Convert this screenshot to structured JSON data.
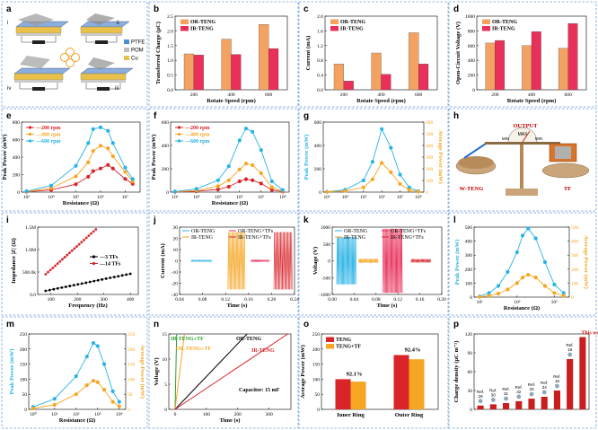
{
  "panel_letters": [
    "a",
    "b",
    "c",
    "d",
    "e",
    "f",
    "g",
    "h",
    "i",
    "j",
    "k",
    "l",
    "m",
    "n",
    "o",
    "p"
  ],
  "colors": {
    "or": "#f4a262",
    "ir": "#e8305a",
    "red": "#d9242a",
    "orange": "#f5a623",
    "cyan": "#27b3e6",
    "black": "#000000",
    "green": "#2e9e2e",
    "dashed": "#6a9bd6"
  },
  "a": {
    "legend": [
      "PTFE",
      "POM",
      "Cu"
    ],
    "roman": [
      "i",
      "ii",
      "iii",
      "iv"
    ],
    "icons": [
      "plate-schematic-icon",
      "clover-arrow-icon"
    ]
  },
  "h": {
    "labels": [
      "OUTPUT",
      "MAX",
      "MIN",
      "W-TENG",
      "TF"
    ],
    "icons": [
      "balance-scale-illustration-icon"
    ]
  },
  "chart_data": [
    {
      "id": "b",
      "type": "bar",
      "categories": [
        "200",
        "400",
        "600"
      ],
      "series": [
        {
          "name": "OR-TENG",
          "values": [
            1.22,
            1.72,
            2.22
          ]
        },
        {
          "name": "IR-TENG",
          "values": [
            1.18,
            1.2,
            1.4
          ]
        }
      ],
      "xlabel": "Rotate Speed (rpm)",
      "ylabel": "Transferred Charge (μC)",
      "ylim": [
        0,
        2.5
      ],
      "yticks": [
        "0.0",
        "0.5",
        "1.0",
        "1.5",
        "2.0",
        "2.5"
      ]
    },
    {
      "id": "c",
      "type": "bar",
      "categories": [
        "200",
        "400",
        "600"
      ],
      "series": [
        {
          "name": "OR-TENG",
          "values": [
            0.7,
            1.0,
            1.55
          ]
        },
        {
          "name": "IR-TENG",
          "values": [
            0.24,
            0.42,
            0.7
          ]
        }
      ],
      "xlabel": "Rotate Speed (rpm)",
      "ylabel": "Current (mA)",
      "ylim": [
        0,
        2.0
      ],
      "yticks": [
        "0.0",
        "0.4",
        "0.8",
        "1.2",
        "1.6",
        "2.0"
      ]
    },
    {
      "id": "d",
      "type": "bar",
      "categories": [
        "200",
        "400",
        "600"
      ],
      "series": [
        {
          "name": "OR-TENG",
          "values": [
            635,
            600,
            565
          ]
        },
        {
          "name": "IR-TENG",
          "values": [
            670,
            790,
            900
          ]
        }
      ],
      "xlabel": "Rotate Speed (rpm)",
      "ylabel": "Open-Circuit Voltage (V)",
      "ylim": [
        0,
        1000
      ],
      "yticks": [
        "0",
        "200",
        "400",
        "600",
        "800",
        "1000"
      ]
    },
    {
      "id": "e",
      "type": "line",
      "x": [
        3,
        4,
        5,
        5.5,
        5.7,
        6,
        6.3,
        6.5,
        7,
        7.3
      ],
      "series": [
        {
          "name": "200 rpm",
          "values": [
            3,
            25,
            90,
            175,
            240,
            270,
            310,
            270,
            150,
            95
          ]
        },
        {
          "name": "400 rpm",
          "values": [
            5,
            45,
            180,
            340,
            470,
            530,
            500,
            410,
            230,
            120
          ]
        },
        {
          "name": "600 rpm",
          "values": [
            10,
            75,
            300,
            560,
            720,
            740,
            700,
            560,
            280,
            150
          ]
        }
      ],
      "xlabel": "Resistance (Ω)",
      "ylabel": "Peak Power (mW)",
      "xticks": [
        "10³",
        "10⁴",
        "10⁵",
        "10⁶",
        "10⁷"
      ],
      "xlim": [
        2.8,
        7.6
      ],
      "ylim": [
        0,
        800
      ],
      "yticks": [
        "0",
        "200",
        "400",
        "600",
        "800"
      ]
    },
    {
      "id": "f",
      "type": "line",
      "x": [
        3,
        4,
        5,
        5.5,
        6,
        6.3,
        6.6,
        7,
        7.5,
        8
      ],
      "series": [
        {
          "name": "200 rpm",
          "values": [
            2,
            8,
            25,
            50,
            100,
            120,
            110,
            80,
            20,
            5
          ]
        },
        {
          "name": "400 rpm",
          "values": [
            3,
            15,
            55,
            110,
            210,
            265,
            250,
            175,
            45,
            10
          ]
        },
        {
          "name": "600 rpm",
          "values": [
            5,
            30,
            110,
            240,
            480,
            590,
            560,
            390,
            100,
            20
          ]
        }
      ],
      "xlabel": "Resistance (Ω)",
      "ylabel": "Peak Power (mW)",
      "xticks": [
        "10³",
        "10⁴",
        "10⁵",
        "10⁶",
        "10⁷",
        "10⁸"
      ],
      "xlim": [
        2.8,
        8.3
      ],
      "ylim": [
        0,
        650
      ],
      "yticks": [
        "0",
        "200",
        "400",
        "600"
      ]
    },
    {
      "id": "g",
      "type": "line",
      "x": [
        3,
        4,
        5,
        5.5,
        6,
        6.5,
        7,
        7.5,
        8
      ],
      "series": [
        {
          "name": "Peak Power",
          "axis": "left",
          "values": [
            3,
            20,
            100,
            260,
            540,
            380,
            150,
            40,
            8
          ]
        },
        {
          "name": "Average Power",
          "axis": "right",
          "values": [
            2,
            10,
            40,
            110,
            250,
            170,
            70,
            18,
            4
          ]
        }
      ],
      "ylabel": "Peak Power (mW)",
      "y2label": "Average Power (mW)",
      "xticks": [
        "10³",
        "10⁴",
        "10⁵",
        "10⁶",
        "10⁷",
        "10⁸"
      ],
      "xlim": [
        2.8,
        8.3
      ],
      "ylim": [
        0,
        600
      ],
      "yticks": [
        "0",
        "200",
        "400",
        "600"
      ],
      "y2lim": [
        0,
        600
      ],
      "y2ticks": [
        "0",
        "100",
        "200",
        "300",
        "400",
        "500",
        "600"
      ]
    },
    {
      "id": "i",
      "type": "scatter",
      "series": [
        {
          "name": "3 TFs",
          "x": [
            80,
            400
          ],
          "values": [
            0.08,
            0.46
          ]
        },
        {
          "name": "14 TFs",
          "x": [
            80,
            270
          ],
          "values": [
            0.45,
            1.45
          ]
        }
      ],
      "xlabel": "Frequency (Hz)",
      "ylabel": "Impedance |Z| (Ω)",
      "xlim": [
        50,
        430
      ],
      "xticks": [
        "100",
        "200",
        "300",
        "400"
      ],
      "ylim": [
        0,
        1.5
      ],
      "yticks": [
        "0.0",
        "500.0k",
        "1.0M",
        "1.5M"
      ]
    },
    {
      "id": "j",
      "type": "line",
      "series_names": [
        "OR-TENG",
        "IR-TENG",
        "OR-TENG+TFs",
        "IR-TENG+TFs"
      ],
      "xlabel": "Time (s)",
      "ylabel": "Current (mA)",
      "xlim": [
        0.04,
        0.24
      ],
      "xticks": [
        "0.04",
        "0.08",
        "0.12",
        "0.16",
        "0.20",
        "0.24"
      ],
      "ylim": [
        -30,
        30
      ],
      "yticks": [
        "-30",
        "-20",
        "-10",
        "0",
        "10",
        "20",
        "30"
      ]
    },
    {
      "id": "k",
      "type": "line",
      "series_names": [
        "OR-TENG",
        "IR-TENG",
        "OR-TENG+TFs",
        "IR-TENG+TFs"
      ],
      "xlabel": "Time (s)",
      "ylabel": "Voltage (V)",
      "xlim": [
        0.0,
        0.2
      ],
      "xticks": [
        "0.00",
        "0.04",
        "0.08",
        "0.12",
        "0.16",
        "0.20"
      ],
      "ylim": [
        -1000,
        1000
      ],
      "yticks": [
        "-1000",
        "-500",
        "0",
        "500",
        "1000"
      ]
    },
    {
      "id": "l",
      "type": "line",
      "x": [
        1,
        1.5,
        2,
        2.5,
        3,
        3.3,
        3.6,
        4,
        4.5,
        5,
        5.5
      ],
      "series": [
        {
          "name": "Peak Power",
          "axis": "left",
          "values": [
            5,
            30,
            80,
            180,
            320,
            440,
            490,
            420,
            250,
            90,
            30
          ]
        },
        {
          "name": "Average Power",
          "axis": "right",
          "values": [
            2,
            10,
            25,
            55,
            100,
            140,
            160,
            140,
            80,
            30,
            10
          ]
        }
      ],
      "xlabel": "Resistance (Ω)",
      "ylabel": "Peak Power (mW)",
      "y2label": "Average Power (mW)",
      "xticks": [
        "10¹",
        "10³",
        "10⁵"
      ],
      "xlim": [
        0.7,
        5.8
      ],
      "ylim": [
        0,
        500
      ],
      "yticks": [
        "0",
        "100",
        "200",
        "300",
        "400",
        "500"
      ],
      "y2lim": [
        0,
        500
      ],
      "y2ticks": [
        "0",
        "100",
        "200",
        "300",
        "400",
        "500"
      ]
    },
    {
      "id": "m",
      "type": "line",
      "x": [
        0,
        1,
        2,
        2.5,
        2.8,
        3,
        3.3,
        3.7,
        4
      ],
      "series": [
        {
          "name": "Peak Power",
          "axis": "left",
          "values": [
            8,
            35,
            110,
            175,
            220,
            210,
            150,
            60,
            25
          ]
        },
        {
          "name": "Average Power",
          "axis": "right",
          "values": [
            3,
            15,
            50,
            80,
            95,
            90,
            65,
            25,
            10
          ]
        }
      ],
      "xlabel": "Resistance (Ω)",
      "ylabel": "Peak Power (mW)",
      "y2label": "Average Power (mW)",
      "xticks": [
        "10⁰",
        "10¹",
        "10²",
        "10³",
        "10⁴"
      ],
      "xlim": [
        -0.2,
        4.3
      ],
      "ylim": [
        0,
        250
      ],
      "yticks": [
        "0",
        "50",
        "100",
        "150",
        "200",
        "250"
      ],
      "y2lim": [
        0,
        250
      ],
      "y2ticks": [
        "0",
        "50",
        "100",
        "150",
        "200",
        "250"
      ]
    },
    {
      "id": "n",
      "type": "line",
      "series": [
        {
          "name": "IR-TENG+TF",
          "x": [
            0,
            5
          ],
          "values": [
            0,
            15
          ]
        },
        {
          "name": "OR-TENG+TF",
          "x": [
            0,
            30
          ],
          "values": [
            0,
            15
          ]
        },
        {
          "name": "OR-TENG",
          "x": [
            0,
            230
          ],
          "values": [
            0,
            15
          ]
        },
        {
          "name": "IR-TENG",
          "x": [
            0,
            360
          ],
          "values": [
            0,
            15
          ]
        }
      ],
      "annotation": "Capacitor: 15 mF",
      "xlabel": "Time (s)",
      "ylabel": "Voltage (V)",
      "xlim": [
        -20,
        370
      ],
      "xticks": [
        "0",
        "100",
        "200",
        "300"
      ],
      "ylim": [
        0,
        15
      ],
      "yticks": [
        "0",
        "5",
        "10",
        "15"
      ]
    },
    {
      "id": "o",
      "type": "bar",
      "categories": [
        "Inner Ring",
        "Outer Ring"
      ],
      "series": [
        {
          "name": "TENG",
          "values": [
            100,
            180
          ]
        },
        {
          "name": "TENG+TF",
          "values": [
            92,
            166
          ]
        }
      ],
      "annotations": [
        "92.1%",
        "92.4%"
      ],
      "ylabel": "Average Power (mW)",
      "ylim": [
        0,
        250
      ],
      "yticks": [
        "0",
        "50",
        "100",
        "150",
        "200",
        "250"
      ]
    },
    {
      "id": "p",
      "type": "bar",
      "categories": [
        "Ref. 26",
        "Ref. 30",
        "Ref. 31",
        "Ref. 32",
        "Ref. 33",
        "Ref. 34",
        "Ref. 18",
        "Ref. 19",
        "This work"
      ],
      "values": [
        6,
        8,
        10,
        13,
        17,
        20,
        30,
        80,
        115
      ],
      "ylabel": "Charge density (μC m⁻²)",
      "ylim": [
        0,
        120
      ],
      "yticks": [
        "0",
        "30",
        "60",
        "90",
        "120"
      ]
    }
  ]
}
